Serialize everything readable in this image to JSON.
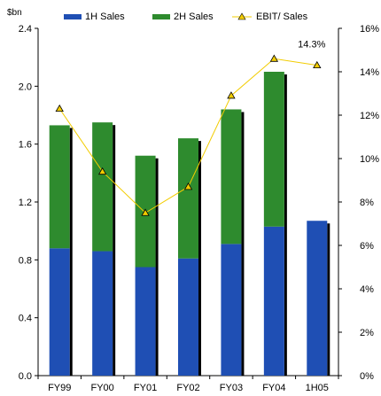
{
  "chart_data": {
    "type": "bar",
    "subtype": "stacked-bar-with-line",
    "categories": [
      "FY99",
      "FY00",
      "FY01",
      "FY02",
      "FY03",
      "FY04",
      "1H05"
    ],
    "series": [
      {
        "name": "1H Sales",
        "axis": "left",
        "type": "bar",
        "color": "#1F4FB4",
        "values": [
          0.88,
          0.86,
          0.75,
          0.81,
          0.91,
          1.03,
          1.07
        ]
      },
      {
        "name": "2H Sales",
        "axis": "left",
        "type": "bar",
        "color": "#2E8B2E",
        "values": [
          0.85,
          0.89,
          0.77,
          0.83,
          0.93,
          1.07,
          0
        ]
      },
      {
        "name": "EBIT/ Sales",
        "axis": "right",
        "type": "line",
        "color": "#F2CC00",
        "values": [
          12.3,
          9.4,
          7.5,
          8.7,
          12.9,
          14.6,
          14.3
        ]
      }
    ],
    "left_axis": {
      "unit_label": "$bn",
      "ylim": [
        0,
        2.4
      ],
      "ticks": [
        "0.0",
        "0.4",
        "0.8",
        "1.2",
        "1.6",
        "2.0",
        "2.4"
      ]
    },
    "right_axis": {
      "ylim": [
        0,
        16
      ],
      "ticks": [
        "0%",
        "2%",
        "4%",
        "6%",
        "8%",
        "10%",
        "12%",
        "14%",
        "16%"
      ]
    },
    "annotation": {
      "text": "14.3%"
    },
    "legend": {
      "placement": "top"
    },
    "grid": false
  }
}
